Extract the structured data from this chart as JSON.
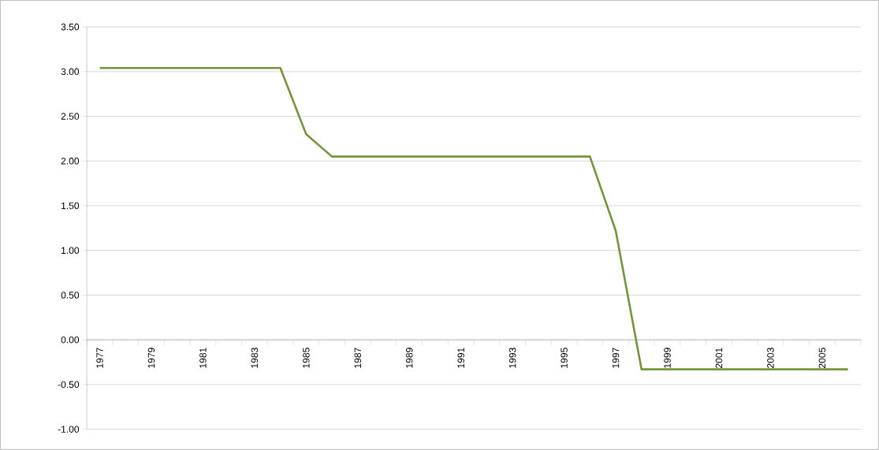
{
  "chart_data": {
    "type": "line",
    "categories": [
      "1977",
      null,
      "1979",
      null,
      "1981",
      null,
      "1983",
      null,
      "1985",
      null,
      "1987",
      null,
      "1989",
      null,
      "1991",
      null,
      "1993",
      null,
      "1995",
      null,
      "1997",
      null,
      "1999",
      null,
      "2001",
      null,
      "2003",
      null,
      "2005",
      null
    ],
    "series": [
      {
        "color": "#77933c",
        "values": [
          3.04,
          3.04,
          3.04,
          3.04,
          3.04,
          3.04,
          3.04,
          3.04,
          2.3,
          2.05,
          2.05,
          2.05,
          2.05,
          2.05,
          2.05,
          2.05,
          2.05,
          2.05,
          2.05,
          2.05,
          1.22,
          -0.33,
          -0.33,
          -0.33,
          -0.33,
          -0.33,
          -0.33,
          -0.33,
          -0.33,
          -0.33
        ]
      }
    ],
    "ylim": [
      -1.0,
      3.5
    ],
    "yticks": [
      {
        "value": -1.0,
        "label": "-1.00"
      },
      {
        "value": -0.5,
        "label": "-0.50"
      },
      {
        "value": 0.0,
        "label": "0.00"
      },
      {
        "value": 0.5,
        "label": "0.50"
      },
      {
        "value": 1.0,
        "label": "1.00"
      },
      {
        "value": 1.5,
        "label": "1.50"
      },
      {
        "value": 2.0,
        "label": "2.00"
      },
      {
        "value": 2.5,
        "label": "2.50"
      },
      {
        "value": 3.0,
        "label": "3.00"
      },
      {
        "value": 3.5,
        "label": "3.50"
      }
    ],
    "grid": "y",
    "marker": "none",
    "line_style": "solid"
  }
}
